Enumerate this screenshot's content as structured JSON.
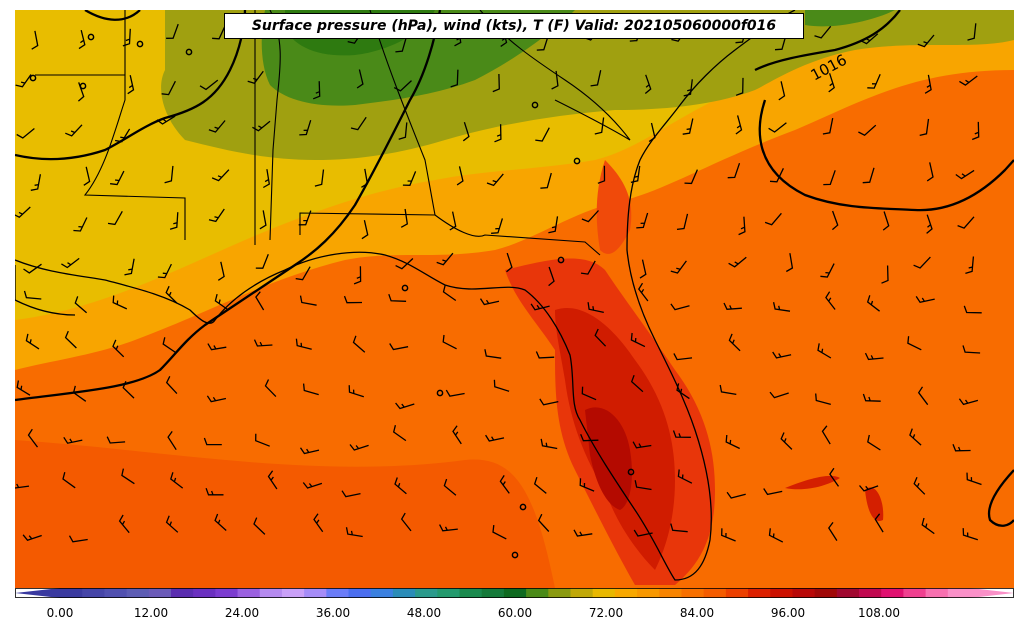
{
  "title": "Surface pressure (hPa), wind (kts), T (F) Valid: 202105060000f016",
  "isobar_label": "1016",
  "colorbar": {
    "ticks": [
      "0.00",
      "12.00",
      "24.00",
      "36.00",
      "48.00",
      "60.00",
      "72.00",
      "84.00",
      "96.00",
      "108.00"
    ],
    "colors": [
      "#3a3aa0",
      "#4545a8",
      "#5050b0",
      "#5c5cb4",
      "#6a5ab8",
      "#5a2db0",
      "#6a30c0",
      "#7b3cd0",
      "#9a60e0",
      "#b58af0",
      "#c9a0f8",
      "#a58cf8",
      "#6a7cf8",
      "#4a6ef0",
      "#3a80e0",
      "#2a8cb8",
      "#2a9a8c",
      "#239a6e",
      "#1a8a4e",
      "#157a3a",
      "#0e6a20",
      "#4a8a18",
      "#8a9a10",
      "#c0a808",
      "#e8b800",
      "#f8a800",
      "#f89800",
      "#f88400",
      "#f87000",
      "#f45c00",
      "#ec4000",
      "#dc2000",
      "#cc1000",
      "#b80808",
      "#a00808",
      "#a00830",
      "#c00850",
      "#e01070",
      "#f04090",
      "#f870b0",
      "#fa90c8"
    ]
  },
  "colors": {
    "warm": "#f86a00",
    "hot": "#d41f00",
    "hottest": "#b80a00",
    "mild": "#f8a500",
    "cool": "#e8bd00",
    "olive": "#a0a010",
    "green": "#4a8a18",
    "darkgreen": "#2e7a10"
  }
}
